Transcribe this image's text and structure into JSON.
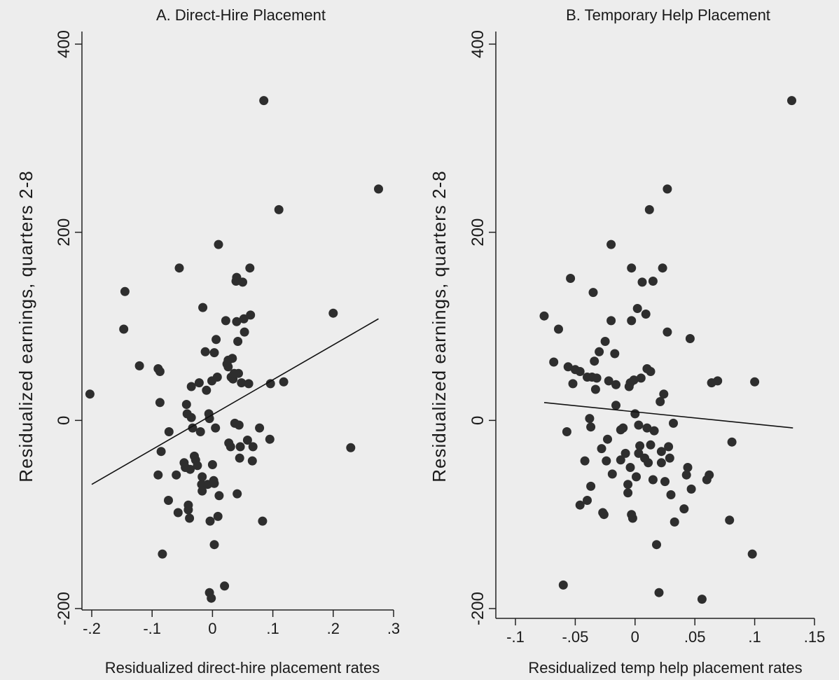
{
  "figure": {
    "background": "#ededed",
    "axis_color": "#222222",
    "dot_color": "#2e2e2e",
    "line_color": "#111111"
  },
  "chart_data": [
    {
      "type": "scatter",
      "title": "A. Direct-Hire Placement",
      "xlabel": "Residualized direct-hire placement rates",
      "ylabel": "Residualized earnings, quarters 2-8",
      "xlim": [
        -0.205,
        0.31
      ],
      "ylim": [
        -210,
        410
      ],
      "xticks": [
        -0.2,
        -0.1,
        0,
        0.1,
        0.2,
        0.3
      ],
      "xtick_labels": [
        "-.2",
        "-.1",
        "0",
        ".1",
        ".2",
        ".3"
      ],
      "yticks": [
        -200,
        0,
        200,
        400
      ],
      "ytick_labels": [
        "-200",
        "0",
        "200",
        "400"
      ],
      "grid": false,
      "fit_line": {
        "x": [
          -0.2,
          0.275
        ],
        "y": [
          -68,
          108
        ]
      },
      "points": [
        {
          "x": -0.203,
          "y": 28
        },
        {
          "x": -0.145,
          "y": 137
        },
        {
          "x": -0.147,
          "y": 97
        },
        {
          "x": -0.121,
          "y": 58
        },
        {
          "x": -0.09,
          "y": 55
        },
        {
          "x": -0.087,
          "y": 52
        },
        {
          "x": -0.087,
          "y": 19
        },
        {
          "x": -0.085,
          "y": -33
        },
        {
          "x": -0.09,
          "y": -58
        },
        {
          "x": -0.083,
          "y": -142
        },
        {
          "x": -0.072,
          "y": -12
        },
        {
          "x": -0.073,
          "y": -85
        },
        {
          "x": -0.06,
          "y": -58
        },
        {
          "x": -0.057,
          "y": -98
        },
        {
          "x": -0.055,
          "y": 162
        },
        {
          "x": -0.047,
          "y": -45
        },
        {
          "x": -0.045,
          "y": -50
        },
        {
          "x": -0.043,
          "y": 17
        },
        {
          "x": -0.042,
          "y": 7
        },
        {
          "x": -0.04,
          "y": -90
        },
        {
          "x": -0.04,
          "y": -95
        },
        {
          "x": -0.038,
          "y": -104
        },
        {
          "x": -0.037,
          "y": -52
        },
        {
          "x": -0.035,
          "y": 36
        },
        {
          "x": -0.035,
          "y": 3
        },
        {
          "x": -0.033,
          "y": -8
        },
        {
          "x": -0.03,
          "y": -38
        },
        {
          "x": -0.028,
          "y": -42
        },
        {
          "x": -0.025,
          "y": -48
        },
        {
          "x": -0.022,
          "y": 40
        },
        {
          "x": -0.02,
          "y": -12
        },
        {
          "x": -0.018,
          "y": -68
        },
        {
          "x": -0.017,
          "y": -60
        },
        {
          "x": -0.017,
          "y": -75
        },
        {
          "x": -0.016,
          "y": 120
        },
        {
          "x": -0.012,
          "y": 73
        },
        {
          "x": -0.01,
          "y": 32
        },
        {
          "x": -0.008,
          "y": -68
        },
        {
          "x": -0.006,
          "y": 7
        },
        {
          "x": -0.005,
          "y": 2
        },
        {
          "x": -0.004,
          "y": -107
        },
        {
          "x": -0.005,
          "y": -183
        },
        {
          "x": -0.002,
          "y": -189
        },
        {
          "x": -0.001,
          "y": 42
        },
        {
          "x": 0.0,
          "y": -47
        },
        {
          "x": 0.002,
          "y": -64
        },
        {
          "x": 0.003,
          "y": -67
        },
        {
          "x": 0.003,
          "y": 72
        },
        {
          "x": 0.003,
          "y": -132
        },
        {
          "x": 0.005,
          "y": -8
        },
        {
          "x": 0.006,
          "y": 86
        },
        {
          "x": 0.008,
          "y": 46
        },
        {
          "x": 0.009,
          "y": -102
        },
        {
          "x": 0.01,
          "y": 187
        },
        {
          "x": 0.011,
          "y": -80
        },
        {
          "x": 0.02,
          "y": -176
        },
        {
          "x": 0.022,
          "y": 106
        },
        {
          "x": 0.024,
          "y": 60
        },
        {
          "x": 0.026,
          "y": 64
        },
        {
          "x": 0.026,
          "y": 57
        },
        {
          "x": 0.027,
          "y": -24
        },
        {
          "x": 0.03,
          "y": -28
        },
        {
          "x": 0.031,
          "y": 46
        },
        {
          "x": 0.033,
          "y": 66
        },
        {
          "x": 0.034,
          "y": 44
        },
        {
          "x": 0.036,
          "y": 50
        },
        {
          "x": 0.037,
          "y": -3
        },
        {
          "x": 0.039,
          "y": 148
        },
        {
          "x": 0.04,
          "y": 152
        },
        {
          "x": 0.04,
          "y": 105
        },
        {
          "x": 0.041,
          "y": -78
        },
        {
          "x": 0.042,
          "y": 84
        },
        {
          "x": 0.043,
          "y": 50
        },
        {
          "x": 0.044,
          "y": -5
        },
        {
          "x": 0.045,
          "y": -40
        },
        {
          "x": 0.046,
          "y": -28
        },
        {
          "x": 0.048,
          "y": 40
        },
        {
          "x": 0.05,
          "y": 147
        },
        {
          "x": 0.052,
          "y": 108
        },
        {
          "x": 0.053,
          "y": 94
        },
        {
          "x": 0.058,
          "y": -21
        },
        {
          "x": 0.06,
          "y": 39
        },
        {
          "x": 0.062,
          "y": 162
        },
        {
          "x": 0.063,
          "y": 112
        },
        {
          "x": 0.066,
          "y": -43
        },
        {
          "x": 0.067,
          "y": -28
        },
        {
          "x": 0.078,
          "y": -8
        },
        {
          "x": 0.083,
          "y": -107
        },
        {
          "x": 0.085,
          "y": 340
        },
        {
          "x": 0.095,
          "y": -20
        },
        {
          "x": 0.096,
          "y": 39
        },
        {
          "x": 0.11,
          "y": 224
        },
        {
          "x": 0.118,
          "y": 41
        },
        {
          "x": 0.2,
          "y": 114
        },
        {
          "x": 0.229,
          "y": -29
        },
        {
          "x": 0.275,
          "y": 246
        }
      ]
    },
    {
      "type": "scatter",
      "title": "B. Temporary Help Placement",
      "xlabel": "Residualized temp help placement rates",
      "ylabel": "Residualized earnings, quarters 2-8",
      "xlim": [
        -0.106,
        0.158
      ],
      "ylim": [
        -210,
        410
      ],
      "xticks": [
        -0.1,
        -0.05,
        0,
        0.05,
        0.1,
        0.15
      ],
      "xtick_labels": [
        "-.1",
        "-.05",
        "0",
        ".05",
        ".1",
        ".15"
      ],
      "yticks": [
        -200,
        0,
        200,
        400
      ],
      "ytick_labels": [
        "-200",
        "0",
        "200",
        "400"
      ],
      "grid": false,
      "fit_line": {
        "x": [
          -0.076,
          0.132
        ],
        "y": [
          19,
          -8
        ]
      },
      "points": [
        {
          "x": -0.076,
          "y": 111
        },
        {
          "x": -0.068,
          "y": 62
        },
        {
          "x": -0.064,
          "y": 97
        },
        {
          "x": -0.06,
          "y": -175
        },
        {
          "x": -0.057,
          "y": -12
        },
        {
          "x": -0.056,
          "y": 57
        },
        {
          "x": -0.054,
          "y": 151
        },
        {
          "x": -0.052,
          "y": 39
        },
        {
          "x": -0.05,
          "y": 54
        },
        {
          "x": -0.046,
          "y": -90
        },
        {
          "x": -0.046,
          "y": 52
        },
        {
          "x": -0.042,
          "y": -43
        },
        {
          "x": -0.04,
          "y": -85
        },
        {
          "x": -0.04,
          "y": 46
        },
        {
          "x": -0.038,
          "y": 2
        },
        {
          "x": -0.037,
          "y": -7
        },
        {
          "x": -0.037,
          "y": -70
        },
        {
          "x": -0.036,
          "y": 46
        },
        {
          "x": -0.035,
          "y": 136
        },
        {
          "x": -0.034,
          "y": 63
        },
        {
          "x": -0.033,
          "y": 33
        },
        {
          "x": -0.032,
          "y": 45
        },
        {
          "x": -0.03,
          "y": 73
        },
        {
          "x": -0.028,
          "y": -30
        },
        {
          "x": -0.027,
          "y": -98
        },
        {
          "x": -0.026,
          "y": -100
        },
        {
          "x": -0.025,
          "y": 84
        },
        {
          "x": -0.024,
          "y": -43
        },
        {
          "x": -0.023,
          "y": -20
        },
        {
          "x": -0.022,
          "y": 42
        },
        {
          "x": -0.02,
          "y": 187
        },
        {
          "x": -0.02,
          "y": 106
        },
        {
          "x": -0.019,
          "y": -57
        },
        {
          "x": -0.017,
          "y": 71
        },
        {
          "x": -0.016,
          "y": 38
        },
        {
          "x": -0.016,
          "y": 16
        },
        {
          "x": -0.012,
          "y": -10
        },
        {
          "x": -0.012,
          "y": -42
        },
        {
          "x": -0.01,
          "y": -8
        },
        {
          "x": -0.008,
          "y": -35
        },
        {
          "x": -0.006,
          "y": -77
        },
        {
          "x": -0.006,
          "y": -68
        },
        {
          "x": -0.005,
          "y": 36
        },
        {
          "x": -0.004,
          "y": 40
        },
        {
          "x": -0.004,
          "y": -50
        },
        {
          "x": -0.003,
          "y": 162
        },
        {
          "x": -0.003,
          "y": 106
        },
        {
          "x": -0.003,
          "y": -100
        },
        {
          "x": -0.002,
          "y": -104
        },
        {
          "x": -0.001,
          "y": 43
        },
        {
          "x": 0.0,
          "y": 7
        },
        {
          "x": 0.001,
          "y": -60
        },
        {
          "x": 0.002,
          "y": 119
        },
        {
          "x": 0.003,
          "y": -35
        },
        {
          "x": 0.003,
          "y": -5
        },
        {
          "x": 0.004,
          "y": -27
        },
        {
          "x": 0.005,
          "y": 45
        },
        {
          "x": 0.006,
          "y": 147
        },
        {
          "x": 0.008,
          "y": -40
        },
        {
          "x": 0.009,
          "y": 113
        },
        {
          "x": 0.01,
          "y": 55
        },
        {
          "x": 0.01,
          "y": -8
        },
        {
          "x": 0.011,
          "y": -45
        },
        {
          "x": 0.012,
          "y": 224
        },
        {
          "x": 0.013,
          "y": 52
        },
        {
          "x": 0.013,
          "y": -26
        },
        {
          "x": 0.015,
          "y": 148
        },
        {
          "x": 0.015,
          "y": -63
        },
        {
          "x": 0.016,
          "y": -11
        },
        {
          "x": 0.018,
          "y": -132
        },
        {
          "x": 0.02,
          "y": -183
        },
        {
          "x": 0.021,
          "y": 20
        },
        {
          "x": 0.022,
          "y": -33
        },
        {
          "x": 0.022,
          "y": -45
        },
        {
          "x": 0.023,
          "y": 162
        },
        {
          "x": 0.024,
          "y": 28
        },
        {
          "x": 0.025,
          "y": -65
        },
        {
          "x": 0.027,
          "y": 246
        },
        {
          "x": 0.027,
          "y": 94
        },
        {
          "x": 0.028,
          "y": -28
        },
        {
          "x": 0.029,
          "y": -40
        },
        {
          "x": 0.03,
          "y": -79
        },
        {
          "x": 0.032,
          "y": -3
        },
        {
          "x": 0.033,
          "y": -108
        },
        {
          "x": 0.041,
          "y": -94
        },
        {
          "x": 0.043,
          "y": -58
        },
        {
          "x": 0.044,
          "y": -50
        },
        {
          "x": 0.046,
          "y": 87
        },
        {
          "x": 0.047,
          "y": -73
        },
        {
          "x": 0.056,
          "y": -190
        },
        {
          "x": 0.06,
          "y": -63
        },
        {
          "x": 0.062,
          "y": -58
        },
        {
          "x": 0.064,
          "y": 40
        },
        {
          "x": 0.069,
          "y": 42
        },
        {
          "x": 0.079,
          "y": -106
        },
        {
          "x": 0.081,
          "y": -23
        },
        {
          "x": 0.098,
          "y": -142
        },
        {
          "x": 0.1,
          "y": 41
        },
        {
          "x": 0.131,
          "y": 340
        }
      ]
    }
  ]
}
